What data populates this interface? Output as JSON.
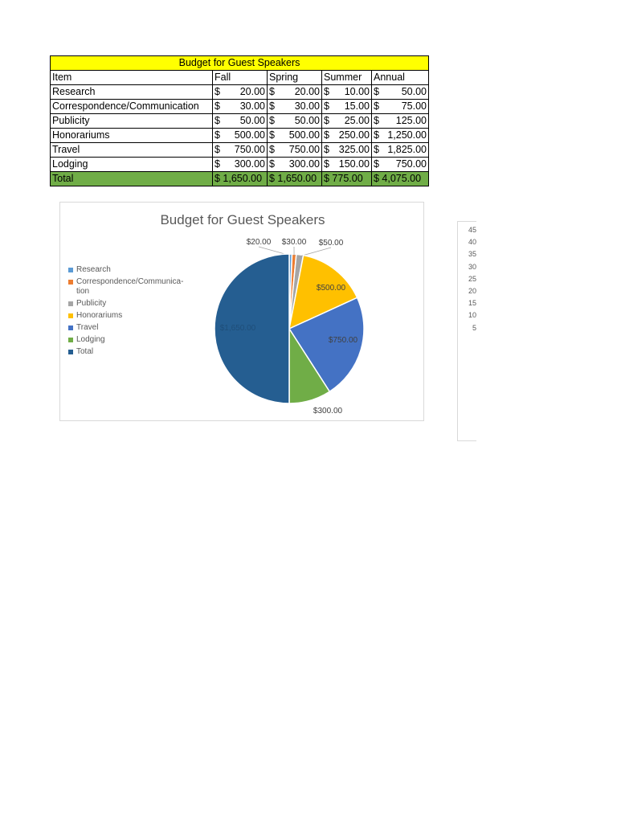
{
  "table": {
    "title": "Budget for Guest Speakers",
    "headers": [
      "Item",
      "Fall",
      "Spring",
      "Summer",
      "Annual"
    ],
    "rows": [
      {
        "item": "Research",
        "cells": [
          "20.00",
          "20.00",
          "10.00",
          "50.00"
        ]
      },
      {
        "item": "Correspondence/Communication",
        "cells": [
          "30.00",
          "30.00",
          "15.00",
          "75.00"
        ]
      },
      {
        "item": "Publicity",
        "cells": [
          "50.00",
          "50.00",
          "25.00",
          "125.00"
        ]
      },
      {
        "item": "Honorariums",
        "cells": [
          "500.00",
          "500.00",
          "250.00",
          "1,250.00"
        ]
      },
      {
        "item": "Travel",
        "cells": [
          "750.00",
          "750.00",
          "325.00",
          "1,825.00"
        ]
      },
      {
        "item": "Lodging",
        "cells": [
          "300.00",
          "300.00",
          "150.00",
          "750.00"
        ]
      }
    ],
    "total": {
      "item": "Total",
      "cells": [
        "$ 1,650.00",
        "$ 1,650.00",
        "$ 775.00",
        "$ 4,075.00"
      ]
    },
    "currency_symbol": "$",
    "title_color": "#ffff00",
    "total_color": "#70ad47"
  },
  "chart_data": {
    "type": "pie",
    "title": "Budget for Guest Speakers",
    "categories": [
      "Research",
      "Correspondence/Communication",
      "Publicity",
      "Honorariums",
      "Travel",
      "Lodging",
      "Total"
    ],
    "legend_labels": [
      "Research",
      "Correspondence/Communica-",
      "tion",
      "Publicity",
      "Honorariums",
      "Travel",
      "Lodging",
      "Total"
    ],
    "values": [
      20,
      30,
      50,
      500,
      750,
      300,
      1650
    ],
    "data_labels": [
      "$20.00",
      "$30.00",
      "$50.00",
      "$500.00",
      "$750.00",
      "$300.00",
      "$1,650.00"
    ],
    "colors": [
      "#5b9bd5",
      "#ed7d31",
      "#a5a5a5",
      "#ffc000",
      "#4472c4",
      "#70ad47",
      "#255e91"
    ],
    "legend_position": "left"
  },
  "chart2": {
    "tick_labels": [
      "45",
      "40",
      "35",
      "30",
      "25",
      "20",
      "15",
      "10",
      "5"
    ]
  }
}
